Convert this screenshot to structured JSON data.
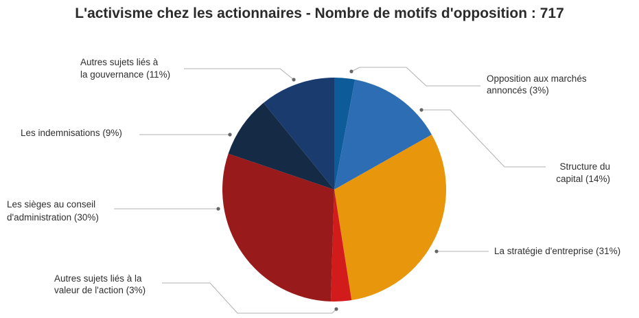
{
  "colors": {
    "title": "#2b2b2b",
    "label": "#2e2e2e",
    "leader": "#b0b0b0",
    "dot": "#666666"
  },
  "chart_data": {
    "type": "pie",
    "title": "L'activisme chez les actionnaires - Nombre de motifs d'opposition : 717",
    "start": "top, clockwise",
    "slices": [
      {
        "key": "opp",
        "lines": [
          "Opposition aux marchés",
          "annoncés (3%)"
        ],
        "value": 3,
        "color": "#0d5c99"
      },
      {
        "key": "cap",
        "lines": [
          "Structure du",
          "capital (14%)"
        ],
        "value": 14,
        "color": "#2c6db3"
      },
      {
        "key": "strat",
        "lines": [
          "La stratégie d'entreprise (31%)"
        ],
        "value": 31,
        "color": "#e8960c"
      },
      {
        "key": "val",
        "lines": [
          "Autres sujets liés à la",
          "valeur de l'action (3%)"
        ],
        "value": 3,
        "color": "#d21c1c"
      },
      {
        "key": "sieges",
        "lines": [
          "Les sièges au conseil",
          "d'administration (30%)"
        ],
        "value": 30,
        "color": "#981a1a"
      },
      {
        "key": "indem",
        "lines": [
          "Les indemnisations (9%)"
        ],
        "value": 9,
        "color": "#152a45"
      },
      {
        "key": "gouv",
        "lines": [
          "Autres sujets liés à",
          "la gouvernance (11%)"
        ],
        "value": 11,
        "color": "#1a3b6e"
      }
    ]
  }
}
